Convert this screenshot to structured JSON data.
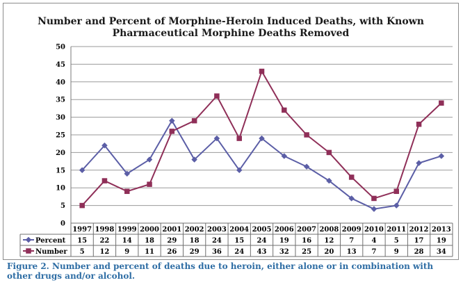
{
  "chart_data": {
    "type": "line",
    "title": "Number and Percent of Morphine-Heroin Induced Deaths, with Known Pharmaceutical Morphine Deaths Removed",
    "title_lines": [
      "Number and Percent of Morphine-Heroin Induced Deaths, with Known",
      "Pharmaceutical Morphine Deaths Removed"
    ],
    "categories": [
      "1997",
      "1998",
      "1999",
      "2000",
      "2001",
      "2002",
      "2003",
      "2004",
      "2005",
      "2006",
      "2007",
      "2008",
      "2009",
      "2010",
      "2011",
      "2012",
      "2013"
    ],
    "ylim": [
      0,
      50
    ],
    "yticks": [
      0,
      5,
      10,
      15,
      20,
      25,
      30,
      35,
      40,
      45,
      50
    ],
    "grid": true,
    "legend": "data-table-below",
    "series": [
      {
        "name": "Percent",
        "color": "#5b5ea6",
        "marker": "diamond",
        "values": [
          15,
          22,
          14,
          18,
          29,
          18,
          24,
          15,
          24,
          19,
          16,
          12,
          7,
          4,
          5,
          17,
          19
        ]
      },
      {
        "name": "Number",
        "color": "#8f2f58",
        "marker": "square",
        "values": [
          5,
          12,
          9,
          11,
          26,
          29,
          36,
          24,
          43,
          32,
          25,
          20,
          13,
          7,
          9,
          28,
          34
        ]
      }
    ]
  },
  "caption": "Figure 2.  Number and percent of deaths due to heroin, either alone or in combination with other drugs and/or alcohol."
}
